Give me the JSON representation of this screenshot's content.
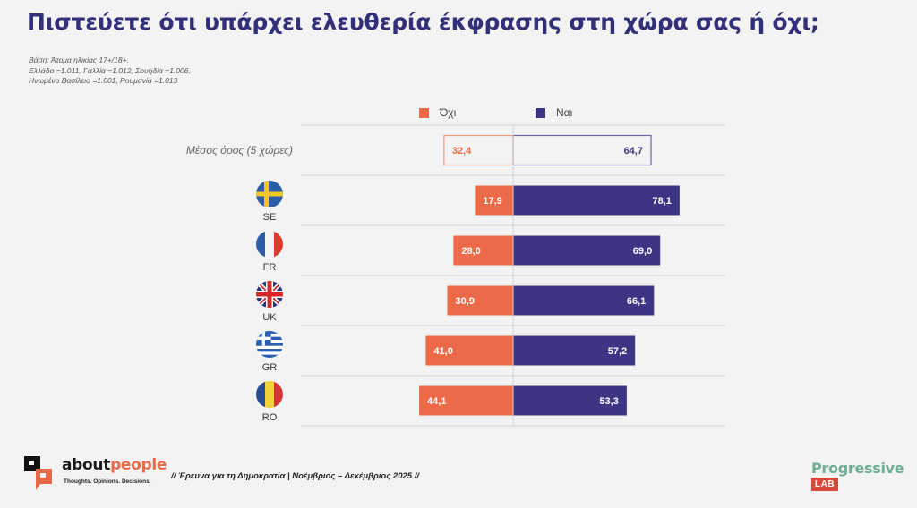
{
  "header": {
    "title": "Πιστεύετε ότι υπάρχει ελευθερία έκφρασης στη χώρα σας ή όχι;",
    "base_lines": [
      "Βάση: Άτομα ηλικίας 17+/18+,",
      "Ελλάδα =1.011, Γαλλία =1.012, Σουηδία =1.006,",
      "Ηνωμένο Βασίλειο =1.001, Ρουμανία =1.013"
    ]
  },
  "colors": {
    "no": "#ec6a47",
    "yes": "#3d3584",
    "avg_no_border": "#f2987e",
    "avg_yes_border": "#6b63a8",
    "title": "#33307a"
  },
  "chart_data": {
    "type": "bar",
    "orientation": "horizontal-diverging",
    "title": "Πιστεύετε ότι υπάρχει ελευθερία έκφρασης στη χώρα σας ή όχι;",
    "legend": {
      "placement": "top",
      "entries": [
        "Όχι",
        "Ναι"
      ]
    },
    "categories": [
      "Μέσος όρος (5 χώρες)",
      "SE",
      "FR",
      "UK",
      "GR",
      "RO"
    ],
    "category_icons": [
      "",
      "sweden-flag-icon",
      "france-flag-icon",
      "uk-flag-icon",
      "greece-flag-icon",
      "romania-flag-icon"
    ],
    "series": [
      {
        "name": "Όχι",
        "direction": "left",
        "values": [
          32.4,
          17.9,
          28.0,
          30.9,
          41.0,
          44.1
        ],
        "labels": [
          "32,4",
          "17,9",
          "28,0",
          "30,9",
          "41,0",
          "44,1"
        ]
      },
      {
        "name": "Ναι",
        "direction": "right",
        "values": [
          64.7,
          78.1,
          69.0,
          66.1,
          57.2,
          53.3
        ],
        "labels": [
          "64,7",
          "78,1",
          "69,0",
          "66,1",
          "57,2",
          "53,3"
        ]
      }
    ],
    "unit": "%",
    "xlim": [
      -100,
      100
    ],
    "grid": false
  },
  "footer": {
    "survey_note": "// Έρευνα για τη Δημοκρατία | Νοέμβριος – Δεκέμβριος 2025 //",
    "brand_left_a": "about",
    "brand_left_b": "people",
    "brand_left_tagline": "Thoughts. Opinions. Decisions.",
    "brand_right_word": "Progressive",
    "brand_right_badge": "LAB"
  }
}
